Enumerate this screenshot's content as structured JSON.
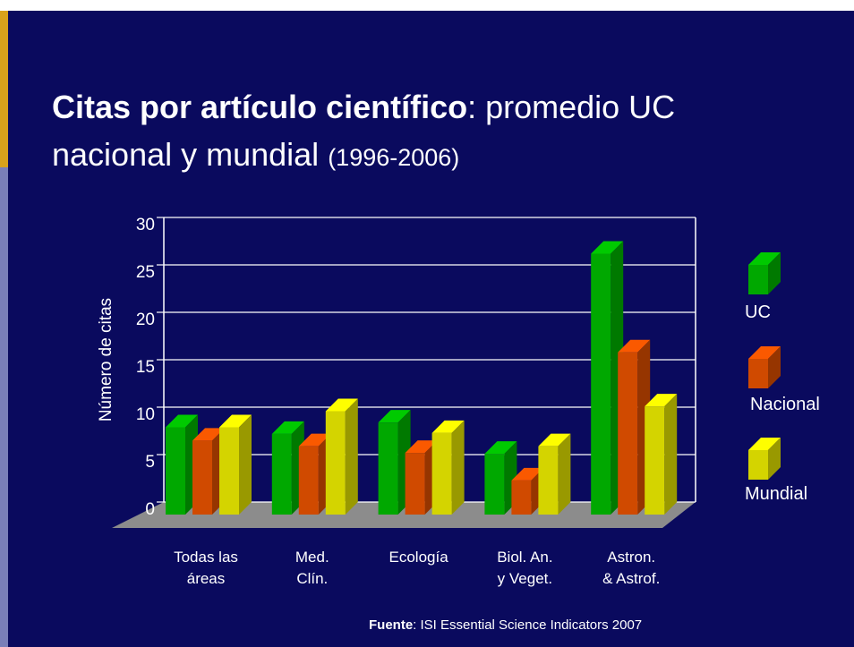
{
  "chart_data": {
    "type": "bar3d",
    "title": {
      "bold": "Citas por artículo científico",
      "rest": ": promedio UC",
      "line2": "nacional y mundial",
      "note": "(1996-2006)"
    },
    "ylabel": "Número de citas",
    "categories": [
      [
        "Todas las",
        "áreas"
      ],
      [
        "Med.",
        "Clín."
      ],
      [
        "Ecología"
      ],
      [
        "Biol. An.",
        "y Veget."
      ],
      [
        "Astron.",
        "& Astrof."
      ]
    ],
    "series": [
      {
        "name": "UC",
        "color": "#00a800",
        "values": [
          9.2,
          8.5,
          9.7,
          6.4,
          27.5
        ]
      },
      {
        "name": "Nacional",
        "color": "#d04a00",
        "values": [
          7.8,
          7.2,
          6.5,
          3.6,
          17.1
        ]
      },
      {
        "name": "Mundial",
        "color": "#d4d400",
        "values": [
          9.2,
          10.9,
          8.6,
          7.2,
          11.4
        ]
      }
    ],
    "ylim": [
      0,
      30
    ],
    "yticks": [
      0,
      5,
      10,
      15,
      20,
      25,
      30
    ],
    "grid": true,
    "legend": "right",
    "source": {
      "bold": "Fuente",
      "rest": ": ISI Essential Science Indicators 2007"
    }
  }
}
